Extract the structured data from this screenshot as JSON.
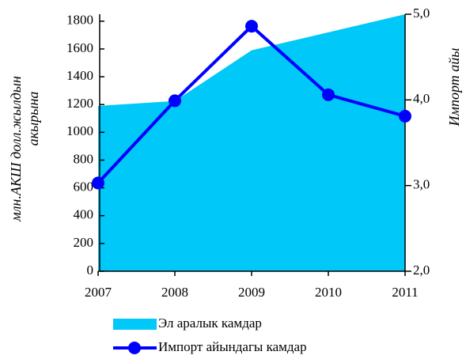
{
  "chart_data": {
    "type": "area_line",
    "categories": [
      "2007",
      "2008",
      "2009",
      "2010",
      "2011"
    ],
    "ylabel": [
      "млн.АКШ долл.жылдын",
      "акырына"
    ],
    "y2label": "Импорт айы",
    "ylim": [
      0,
      1850
    ],
    "yticks": [
      0,
      200,
      400,
      600,
      800,
      1000,
      1200,
      1400,
      1600,
      1800
    ],
    "y2lim": [
      2,
      5
    ],
    "y2ticks": [
      {
        "value": 2,
        "label": "2,0"
      },
      {
        "value": 3,
        "label": "3,0"
      },
      {
        "value": 4,
        "label": "4,0"
      },
      {
        "value": 5,
        "label": "5,0"
      }
    ],
    "series": [
      {
        "name": "Эл аралык камдар",
        "color": "#00c8f8",
        "type": "area",
        "values": [
          1190,
          1225,
          1590,
          1720,
          1850
        ]
      },
      {
        "name": "Импорт айындагы камдар",
        "color": "#0000ff",
        "type": "line",
        "axis": "y2",
        "values": [
          3.03,
          3.99,
          4.86,
          4.06,
          3.81
        ]
      }
    ]
  }
}
